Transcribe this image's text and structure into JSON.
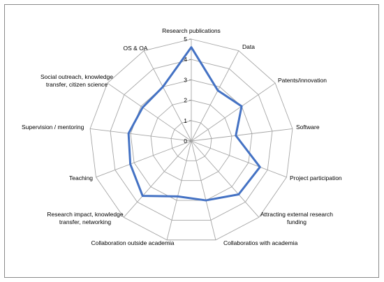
{
  "chart_data": {
    "type": "radar",
    "title": "",
    "categories": [
      "Research publications",
      "Data",
      "Patents/innovation",
      "Software",
      "Project participation",
      "Attracting external research funding",
      "Collaboratios with academia",
      "Collaboration outside academia",
      "Research impact, knowledge transfer, networking",
      "Teaching",
      "Supervision / mentoring",
      "Social outreach, knowledge transfer, citizen science",
      "OS & OA"
    ],
    "series": [
      {
        "values": [
          4.6,
          2.8,
          3.0,
          2.2,
          3.6,
          3.5,
          3.0,
          2.8,
          3.6,
          3.2,
          3.1,
          2.9,
          3.0
        ]
      }
    ],
    "rlim": [
      0,
      5
    ],
    "r_ticks": [
      0,
      1,
      2,
      3,
      4,
      5
    ],
    "grid": true,
    "legend": "none",
    "colors": {
      "series": "#4472C4",
      "grid": "#a6a6a6"
    }
  }
}
